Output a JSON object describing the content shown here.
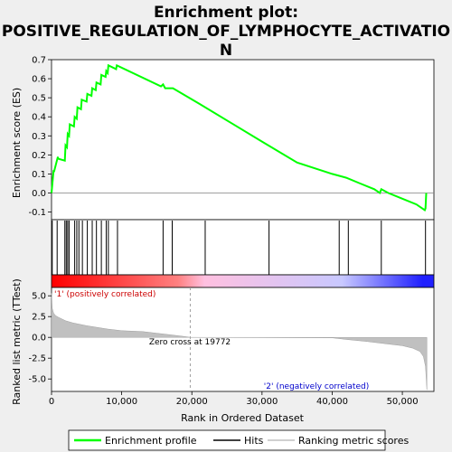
{
  "chart_data": {
    "type": "line",
    "title_lines": [
      "Enrichment plot:",
      "POSITIVE_REGULATION_OF_LYMPHOCYTE_ACTIVATIO",
      "N"
    ],
    "top_panel": {
      "ylabel": "Enrichment score (ES)",
      "ylim": [
        -0.14,
        0.7
      ],
      "yticks": [
        -0.1,
        0.0,
        0.1,
        0.2,
        0.3,
        0.4,
        0.5,
        0.6,
        0.7
      ],
      "ytick_labels": [
        "-0.1",
        "0.0",
        "0.1",
        "0.2",
        "0.3",
        "0.4",
        "0.5",
        "0.6",
        "0.7"
      ],
      "series": [
        {
          "name": "Enrichment profile",
          "color": "#00ff00",
          "x": [
            0,
            300,
            350,
            900,
            950,
            1900,
            2000,
            2200,
            2300,
            2500,
            2600,
            3200,
            3300,
            3600,
            3700,
            4200,
            4300,
            5000,
            5100,
            5700,
            5800,
            6300,
            6400,
            7000,
            7100,
            7700,
            7800,
            8000,
            8100,
            9200,
            9300,
            15600,
            15900,
            16200,
            17300,
            21000,
            30000,
            35000,
            40000,
            42000,
            44000,
            46000,
            46800,
            46900,
            47000,
            48000,
            50000,
            52000,
            53200,
            53300,
            53400
          ],
          "y": [
            0.0,
            0.12,
            0.11,
            0.19,
            0.18,
            0.17,
            0.25,
            0.24,
            0.31,
            0.3,
            0.36,
            0.35,
            0.4,
            0.39,
            0.45,
            0.44,
            0.49,
            0.48,
            0.52,
            0.51,
            0.55,
            0.54,
            0.58,
            0.57,
            0.62,
            0.61,
            0.64,
            0.63,
            0.67,
            0.65,
            0.67,
            0.56,
            0.57,
            0.55,
            0.55,
            0.47,
            0.27,
            0.16,
            0.1,
            0.08,
            0.05,
            0.02,
            0.0,
            0.01,
            0.02,
            0.0,
            -0.03,
            -0.06,
            -0.09,
            -0.08,
            0.0
          ]
        }
      ],
      "hits_x": [
        100,
        800,
        1900,
        2100,
        2300,
        2500,
        3300,
        3600,
        3900,
        4400,
        5100,
        5800,
        6400,
        7100,
        7800,
        8100,
        9400,
        15900,
        17200,
        21900,
        31000,
        41000,
        42300,
        47000,
        53300
      ]
    },
    "heatbar": {
      "colors": [
        "#ff0000",
        "#ff8080",
        "#ffc0e0",
        "#c8c8ff",
        "#2020ff"
      ]
    },
    "bottom_panel": {
      "ylabel": "Ranked list metric (TTest)",
      "ylim": [
        -6.5,
        6.0
      ],
      "yticks": [
        -5.0,
        -2.5,
        0.0,
        2.5,
        5.0
      ],
      "ytick_labels": [
        "-5.0",
        "-2.5",
        "0.0",
        "2.5",
        "5.0"
      ],
      "xlabel": "Rank in Ordered Dataset",
      "xlim": [
        0,
        54500
      ],
      "xticks": [
        0,
        10000,
        20000,
        30000,
        40000,
        50000
      ],
      "xtick_labels": [
        "0",
        "10,000",
        "20,000",
        "30,000",
        "40,000",
        "50,000"
      ],
      "metric_x": [
        0,
        100,
        300,
        600,
        1000,
        2000,
        3000,
        5000,
        8000,
        10000,
        13000,
        15000,
        17000,
        19000,
        19772,
        40000,
        42000,
        45000,
        48000,
        50000,
        51500,
        52500,
        53000,
        53300,
        53500
      ],
      "metric_y": [
        5.3,
        3.5,
        2.9,
        2.6,
        2.4,
        2.0,
        1.75,
        1.4,
        1.0,
        0.8,
        0.7,
        0.5,
        0.3,
        0.1,
        0.0,
        -0.05,
        -0.25,
        -0.5,
        -0.8,
        -1.0,
        -1.3,
        -1.7,
        -2.3,
        -3.5,
        -6.3
      ],
      "zero_cross_x": 19772,
      "zero_cross_label": "Zero cross at 19772",
      "pos_label": "'1' (positively correlated)",
      "neg_label": "'2' (negatively correlated)",
      "pos_color": "#cc0000",
      "neg_color": "#0000cc"
    },
    "legend": {
      "entries": [
        {
          "label": "Enrichment profile",
          "color": "#00ff00"
        },
        {
          "label": "Hits",
          "color": "#000000"
        },
        {
          "label": "Ranking metric scores",
          "color": "#c0c0c0"
        }
      ]
    }
  }
}
